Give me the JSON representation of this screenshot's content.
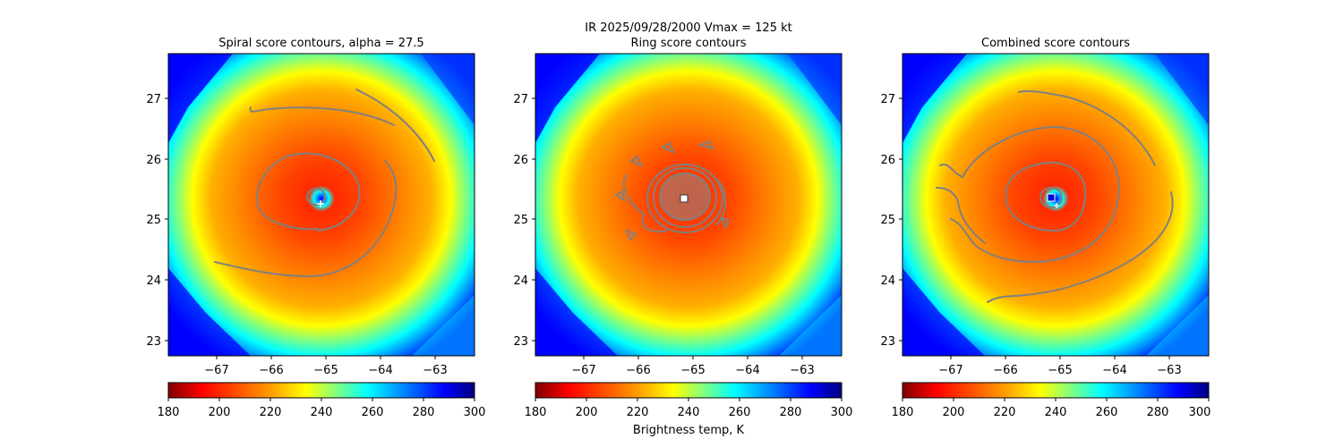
{
  "figure": {
    "suptitle_line1": "IR  2025/09/28/2000    Vmax = 125 kt",
    "colorbar_label": "Brightness temp, K"
  },
  "chart_data": [
    {
      "type": "heatmap",
      "title": "Spiral score contours, alpha = 27.5",
      "xticks": [
        "−67",
        "−66",
        "−65",
        "−64",
        "−63"
      ],
      "yticks": [
        "23",
        "24",
        "25",
        "26",
        "27"
      ],
      "xlim": [
        -67.9,
        -62.5
      ],
      "ylim": [
        22.75,
        27.75
      ],
      "colorbar": {
        "ticks": [
          "180",
          "200",
          "220",
          "240",
          "260",
          "280",
          "300"
        ],
        "range": [
          180,
          300
        ],
        "colormap": "jet_r"
      },
      "center_marker": {
        "lon": -65.1,
        "lat": 25.25,
        "symbol": "+"
      },
      "contour_color": "#808080"
    },
    {
      "type": "heatmap",
      "title": "Ring score contours",
      "xticks": [
        "−67",
        "−66",
        "−65",
        "−64",
        "−63"
      ],
      "yticks": [
        "23",
        "24",
        "25",
        "26",
        "27"
      ],
      "xlim": [
        -67.9,
        -62.5
      ],
      "ylim": [
        22.75,
        27.75
      ],
      "colorbar": {
        "ticks": [
          "180",
          "200",
          "220",
          "240",
          "260",
          "280",
          "300"
        ],
        "range": [
          180,
          300
        ],
        "colormap": "jet_r"
      },
      "center_marker": {
        "lon": -65.2,
        "lat": 25.35,
        "symbol": "square"
      },
      "contour_color": "#808080"
    },
    {
      "type": "heatmap",
      "title": "Combined score contours",
      "xticks": [
        "−67",
        "−66",
        "−65",
        "−64",
        "−63"
      ],
      "yticks": [
        "23",
        "24",
        "25",
        "26",
        "27"
      ],
      "xlim": [
        -67.9,
        -62.5
      ],
      "ylim": [
        22.75,
        27.75
      ],
      "colorbar": {
        "ticks": [
          "180",
          "200",
          "220",
          "240",
          "260",
          "280",
          "300"
        ],
        "range": [
          180,
          300
        ],
        "colormap": "jet_r"
      },
      "center_marker": {
        "lon": -65.2,
        "lat": 25.35,
        "symbol": "square"
      },
      "contour_color": "#808080"
    }
  ]
}
